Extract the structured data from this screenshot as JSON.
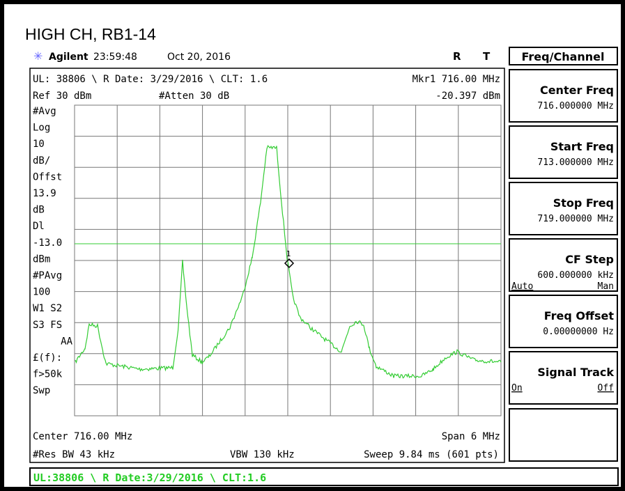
{
  "title": "HIGH CH, RB1-14",
  "header": {
    "brand": "Agilent",
    "time": "23:59:48",
    "date": "Oct 20, 2016",
    "flag_r": "R",
    "flag_t": "T"
  },
  "menu_title": "Freq/Channel",
  "softkeys": [
    {
      "label": "Center Freq",
      "value": "716.000000 MHz"
    },
    {
      "label": "Start Freq",
      "value": "713.000000 MHz"
    },
    {
      "label": "Stop Freq",
      "value": "719.000000 MHz"
    },
    {
      "label": "CF Step",
      "value": "600.000000 kHz",
      "option_left": "Auto",
      "option_right": "Man"
    },
    {
      "label": "Freq Offset",
      "value": "0.00000000  Hz"
    },
    {
      "label": "Signal Track",
      "option_left": "On",
      "option_right": "Off"
    }
  ],
  "screen": {
    "top_line": "UL: 38806 \\ R Date: 3/29/2016 \\ CLT: 1.6",
    "marker": "Mkr1  716.00 MHz",
    "ref": "Ref 30 dBm",
    "atten": "#Atten 30 dB",
    "marker_value": "-20.397 dBm",
    "marker_id": "1",
    "side_labels": [
      "#Avg",
      "Log",
      "10",
      "dB/",
      "Offst",
      "13.9",
      "dB",
      "Dl",
      "-13.0",
      "dBm",
      "#PAvg",
      "100",
      "W1  S2",
      "S3  FS",
      "AA",
      "£(f):",
      "f>50k",
      "Swp"
    ],
    "center": "Center 716.00 MHz",
    "span": "Span 6 MHz",
    "res_bw": "#Res BW 43 kHz",
    "vbw": "VBW 130 kHz",
    "sweep": "Sweep 9.84 ms (601 pts)"
  },
  "status_bar": "UL:38806 \\ R Date:3/29/2016 \\ CLT:1.6"
}
